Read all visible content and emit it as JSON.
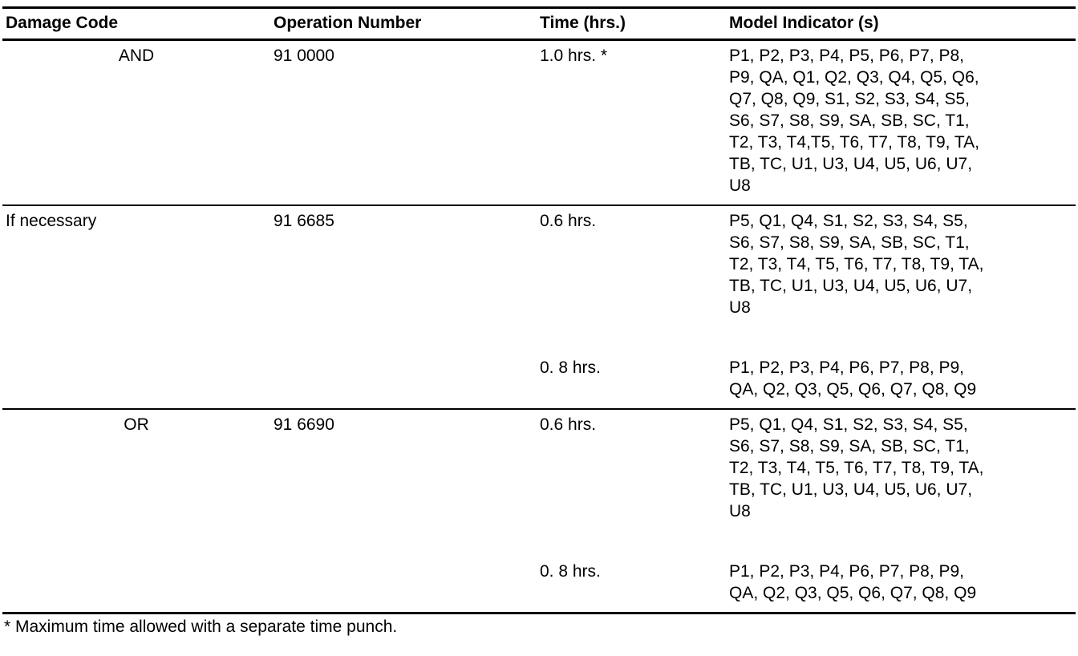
{
  "table": {
    "columns": [
      "Damage Code",
      "Operation Number",
      "Time (hrs.)",
      "Model Indicator (s)"
    ],
    "rows": [
      {
        "damage_code": "AND",
        "operation_number": "91 0000",
        "entries": [
          {
            "time": "1.0 hrs. *",
            "models": "P1, P2, P3, P4, P5, P6, P7, P8,\nP9, QA, Q1, Q2, Q3, Q4, Q5, Q6,\nQ7, Q8, Q9, S1, S2, S3, S4, S5,\nS6, S7, S8, S9, SA, SB, SC, T1,\nT2, T3, T4,T5, T6, T7, T8, T9, TA,\nTB, TC, U1, U3, U4, U5, U6, U7,\nU8"
          }
        ]
      },
      {
        "damage_code": "If necessary",
        "operation_number": "91 6685",
        "entries": [
          {
            "time": "0.6 hrs.",
            "models": "P5, Q1, Q4, S1, S2, S3, S4, S5,\nS6, S7, S8, S9, SA, SB, SC, T1,\nT2, T3, T4, T5, T6, T7, T8, T9, TA,\nTB, TC, U1, U3, U4, U5, U6, U7,\nU8"
          },
          {
            "time": "0. 8 hrs.",
            "models": "P1, P2, P3, P4, P6, P7, P8, P9,\nQA, Q2, Q3, Q5, Q6, Q7, Q8, Q9"
          }
        ]
      },
      {
        "damage_code": "OR",
        "operation_number": "91 6690",
        "entries": [
          {
            "time": "0.6 hrs.",
            "models": "P5, Q1, Q4, S1, S2, S3, S4, S5,\nS6, S7, S8, S9, SA, SB, SC, T1,\nT2, T3, T4, T5, T6, T7, T8, T9, TA,\nTB, TC, U1, U3, U4, U5, U6, U7,\nU8"
          },
          {
            "time": "0. 8 hrs.",
            "models": "P1, P2, P3, P4, P6, P7, P8, P9,\nQA, Q2, Q3, Q5, Q6, Q7, Q8, Q9"
          }
        ]
      }
    ],
    "footnote": "* Maximum time allowed with a separate time punch."
  }
}
